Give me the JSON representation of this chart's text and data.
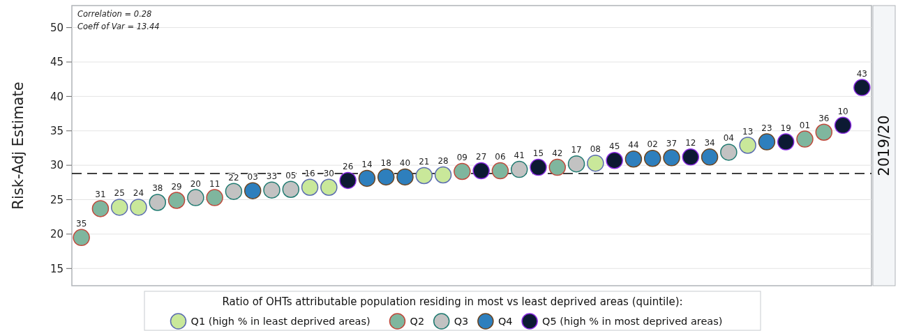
{
  "chart_data": {
    "type": "scatter",
    "ylabel": "Risk-Adj Estimate",
    "legend_title": "Ratio of OHTs attributable population residing in most vs least deprived areas (quintile):",
    "legend": "bottom",
    "grid": "y",
    "marker": "circle",
    "ylim": [
      12.5,
      53.2
    ],
    "yticks": [
      15,
      20,
      25,
      30,
      35,
      40,
      45,
      50
    ],
    "ref_lines": [
      {
        "axis": "y",
        "value": 28.8,
        "line_style": "dashed",
        "color": "#000000"
      }
    ],
    "categories": [
      null,
      null,
      null,
      null,
      null,
      null,
      null,
      null,
      null,
      null,
      null,
      null,
      null,
      null,
      null,
      null,
      null,
      null,
      null,
      null,
      null,
      null,
      null,
      null,
      null,
      null,
      null,
      null,
      null,
      null,
      null,
      null,
      null,
      null,
      null,
      null,
      null,
      null,
      null,
      null,
      null,
      null
    ],
    "series": [
      {
        "name": "Q1 (high % in least deprived areas)",
        "color": "#c9e89a",
        "values": [
          null,
          null,
          23.9,
          23.9,
          null,
          null,
          null,
          null,
          null,
          null,
          null,
          null,
          26.8,
          26.8,
          null,
          null,
          null,
          null,
          28.5,
          28.6,
          null,
          null,
          null,
          null,
          null,
          null,
          null,
          30.3,
          null,
          null,
          null,
          null,
          null,
          null,
          null,
          32.9,
          null,
          null,
          null,
          null,
          null,
          null
        ]
      },
      {
        "name": "Q2",
        "color": "#7fb69e",
        "values": [
          19.5,
          23.7,
          null,
          null,
          null,
          24.9,
          null,
          25.3,
          null,
          null,
          null,
          null,
          null,
          null,
          null,
          null,
          null,
          null,
          null,
          null,
          29.1,
          null,
          29.2,
          null,
          null,
          29.7,
          null,
          null,
          null,
          null,
          null,
          null,
          null,
          null,
          null,
          null,
          null,
          null,
          33.8,
          34.8,
          null,
          null
        ]
      },
      {
        "name": "Q3",
        "color": "#c2c2c2",
        "values": [
          null,
          null,
          null,
          null,
          24.6,
          null,
          25.3,
          null,
          26.2,
          null,
          26.4,
          26.5,
          null,
          null,
          null,
          null,
          null,
          null,
          null,
          null,
          null,
          null,
          null,
          29.4,
          null,
          null,
          30.2,
          null,
          null,
          null,
          null,
          null,
          null,
          null,
          31.9,
          null,
          null,
          null,
          null,
          null,
          null,
          null
        ]
      },
      {
        "name": "Q4",
        "color": "#2e7fbd",
        "values": [
          null,
          null,
          null,
          null,
          null,
          null,
          null,
          null,
          null,
          26.3,
          null,
          null,
          null,
          null,
          null,
          28.1,
          28.3,
          28.3,
          null,
          null,
          null,
          null,
          null,
          null,
          null,
          null,
          null,
          null,
          null,
          30.9,
          31.0,
          31.1,
          null,
          31.2,
          null,
          null,
          33.4,
          null,
          null,
          null,
          null,
          null
        ]
      },
      {
        "name": "Q5 (high % in most deprived areas)",
        "color": "#0c1a33",
        "values": [
          null,
          null,
          null,
          null,
          null,
          null,
          null,
          null,
          null,
          null,
          null,
          null,
          null,
          null,
          27.8,
          null,
          null,
          null,
          null,
          null,
          null,
          29.2,
          null,
          null,
          29.7,
          null,
          null,
          null,
          30.7,
          null,
          null,
          null,
          31.2,
          null,
          null,
          null,
          null,
          33.4,
          null,
          null,
          35.8,
          41.3
        ]
      }
    ],
    "annotations": [
      "Correlation =    0.28",
      "Coeff of Var = 13.44",
      "2019/20",
      "35",
      "31",
      "25",
      "24",
      "38",
      "29",
      "20",
      "11",
      "22",
      "03",
      "33",
      "05",
      "16",
      "30",
      "26",
      "14",
      "18",
      "40",
      "21",
      "28",
      "09",
      "27",
      "06",
      "41",
      "15",
      "42",
      "17",
      "08",
      "45",
      "44",
      "02",
      "37",
      "12",
      "34",
      "04",
      "13",
      "23",
      "19",
      "01",
      "36",
      "10",
      "43"
    ]
  }
}
